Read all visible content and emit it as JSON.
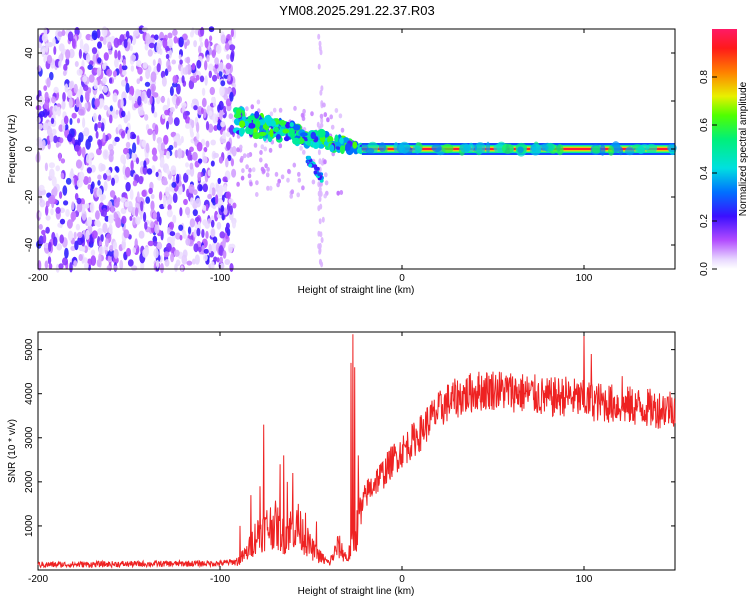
{
  "title": "YM08.2025.291.22.37.R03",
  "colors": {
    "snr_line": "#ee2222",
    "frame": "#000000",
    "scatter_base": "#7a1cf0"
  },
  "chart_data": [
    {
      "type": "heatmap",
      "name": "spectrogram",
      "xlabel": "Height of straight line (km)",
      "ylabel": "Frequency (Hz)",
      "xlim": [
        -200,
        150
      ],
      "ylim": [
        -50,
        50
      ],
      "xticks": [
        -200,
        -100,
        0,
        100
      ],
      "xtick_labels": [
        "-200",
        "-100",
        "0",
        "100"
      ],
      "yticks": [
        -40,
        -20,
        0,
        20,
        40
      ],
      "ytick_labels": [
        "-40",
        "-20",
        "0",
        "20",
        "40"
      ],
      "colorbar": {
        "label": "Normalized spectral amplitude",
        "range": [
          0,
          1
        ],
        "ticks": [
          0.0,
          0.2,
          0.4,
          0.6,
          0.8
        ],
        "tick_labels": [
          "0.0",
          "0.2",
          "0.4",
          "0.6",
          "0.8"
        ]
      },
      "features": {
        "noise_region_x": [
          -200,
          -92
        ],
        "transition_x": [
          -92,
          -22
        ],
        "tone_x": [
          -22,
          150
        ],
        "tone_frequency_hz": 0,
        "tone_amplitude": 0.95,
        "noise_amplitude": 0.1
      }
    },
    {
      "type": "line",
      "name": "snr",
      "xlabel": "Height of straight line (km)",
      "ylabel": "SNR (10 * v/v)",
      "xlim": [
        -200,
        150
      ],
      "ylim": [
        0,
        5400
      ],
      "xticks": [
        -200,
        -100,
        0,
        100
      ],
      "xtick_labels": [
        "-200",
        "-100",
        "0",
        "100"
      ],
      "yticks": [
        1000,
        2000,
        3000,
        4000,
        5000
      ],
      "ytick_labels": [
        "1000",
        "2000",
        "3000",
        "4000",
        "5000"
      ],
      "envelope": {
        "x": [
          -200,
          -100,
          -90,
          -85,
          -80,
          -75,
          -70,
          -65,
          -60,
          -55,
          -50,
          -45,
          -40,
          -35,
          -30,
          -25,
          -20,
          -15,
          -10,
          -5,
          0,
          5,
          10,
          15,
          20,
          25,
          30,
          40,
          50,
          60,
          70,
          80,
          90,
          100,
          110,
          120,
          130,
          140,
          150
        ],
        "y": [
          120,
          150,
          200,
          400,
          800,
          950,
          1050,
          750,
          1000,
          850,
          500,
          300,
          150,
          550,
          250,
          900,
          1700,
          2000,
          2200,
          2500,
          2700,
          2900,
          3100,
          3400,
          3600,
          3800,
          3900,
          4050,
          4100,
          4050,
          4000,
          3900,
          3950,
          3850,
          3800,
          3750,
          3700,
          3650,
          3700
        ]
      },
      "spikes": {
        "x": [
          -89,
          -83,
          -78,
          -76,
          -67,
          -65,
          -63,
          -60,
          -57,
          -53,
          -47,
          -28,
          -27,
          -26,
          -24,
          100,
          104,
          121
        ],
        "y": [
          1000,
          1700,
          1900,
          3300,
          2400,
          2600,
          2000,
          2200,
          1500,
          1300,
          1100,
          4700,
          5350,
          4600,
          2600,
          5350,
          4900,
          4400
        ]
      }
    }
  ]
}
